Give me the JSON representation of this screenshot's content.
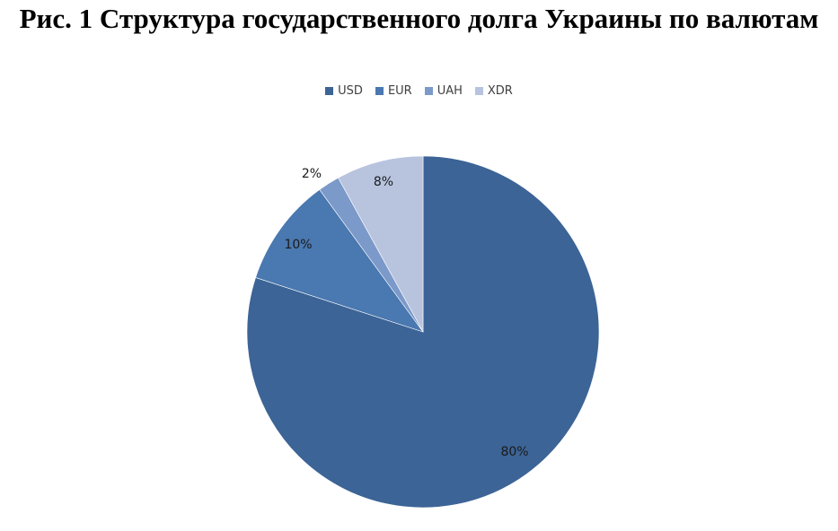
{
  "chart_data": {
    "type": "pie",
    "title": "Рис. 1 Структура государственного долга Украины по валютам",
    "legend_position": "top",
    "slices": [
      {
        "name": "USD",
        "value": 80,
        "label": "80%",
        "color": "#3c6496"
      },
      {
        "name": "EUR",
        "value": 10,
        "label": "10%",
        "color": "#4a78b0"
      },
      {
        "name": "UAH",
        "value": 2,
        "label": "2%",
        "color": "#7b99c9"
      },
      {
        "name": "XDR",
        "value": 8,
        "label": "8%",
        "color": "#b8c4de"
      }
    ]
  }
}
